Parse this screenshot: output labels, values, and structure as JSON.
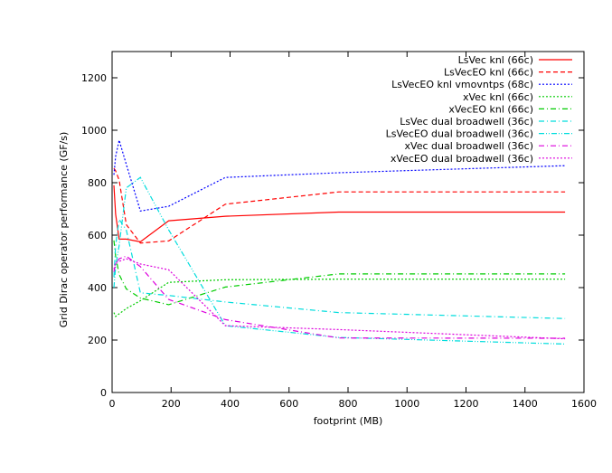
{
  "chart_data": {
    "type": "line",
    "title": "",
    "xlabel": "footprint (MB)",
    "ylabel": "Grid Dirac operator performance (GF/s)",
    "xlim": [
      0,
      1600
    ],
    "ylim": [
      0,
      1300
    ],
    "xticks": [
      0,
      200,
      400,
      600,
      800,
      1000,
      1200,
      1400,
      1600
    ],
    "yticks": [
      0,
      200,
      400,
      600,
      800,
      1000,
      1200
    ],
    "grid": false,
    "legend_position": "top-right",
    "series": [
      {
        "name": "LsVec knl (66c)",
        "color": "#ff0000",
        "dash": "solid",
        "x": [
          6,
          12,
          24,
          48,
          96,
          192,
          384,
          768,
          1536
        ],
        "y": [
          790,
          680,
          585,
          585,
          575,
          655,
          672,
          688,
          688
        ]
      },
      {
        "name": "LsVecEO knl (66c)",
        "color": "#ff0000",
        "dash": "dashed",
        "x": [
          6,
          12,
          24,
          48,
          96,
          192,
          384,
          768,
          1536
        ],
        "y": [
          855,
          845,
          810,
          640,
          570,
          578,
          718,
          765,
          765
        ]
      },
      {
        "name": "LsVecEO knl vmovntps (68c)",
        "color": "#0000ff",
        "dash": "dotted",
        "x": [
          6,
          12,
          24,
          48,
          96,
          192,
          384,
          768,
          1536
        ],
        "y": [
          830,
          900,
          962,
          870,
          692,
          710,
          820,
          838,
          865
        ]
      },
      {
        "name": "xVec knl (66c)",
        "color": "#00cc00",
        "dash": "dotted",
        "x": [
          6,
          12,
          24,
          48,
          96,
          192,
          384,
          768,
          1536
        ],
        "y": [
          305,
          290,
          300,
          320,
          350,
          420,
          430,
          432,
          432
        ]
      },
      {
        "name": "xVecEO knl (66c)",
        "color": "#00cc00",
        "dash": "dashdot",
        "x": [
          6,
          12,
          24,
          48,
          96,
          192,
          384,
          768,
          1536
        ],
        "y": [
          580,
          520,
          450,
          395,
          360,
          335,
          402,
          452,
          452
        ]
      },
      {
        "name": "LsVec dual broadwell (36c)",
        "color": "#00dddd",
        "dash": "dashdot",
        "x": [
          6,
          12,
          24,
          48,
          96,
          192,
          384,
          768,
          1536
        ],
        "y": [
          440,
          560,
          660,
          620,
          380,
          370,
          345,
          305,
          282
        ]
      },
      {
        "name": "LsVecEO dual broadwell (36c)",
        "color": "#00dddd",
        "dash": "dashdotdot",
        "x": [
          6,
          12,
          24,
          48,
          96,
          192,
          384,
          768,
          1536
        ],
        "y": [
          400,
          480,
          560,
          780,
          820,
          620,
          255,
          210,
          185
        ]
      },
      {
        "name": "xVec dual broadwell (36c)",
        "color": "#dd00dd",
        "dash": "dashdot",
        "x": [
          6,
          12,
          24,
          48,
          96,
          192,
          384,
          768,
          1536
        ],
        "y": [
          460,
          490,
          510,
          520,
          480,
          355,
          278,
          208,
          207
        ]
      },
      {
        "name": "xVecEO dual broadwell (36c)",
        "color": "#dd00dd",
        "dash": "dotted",
        "x": [
          6,
          12,
          24,
          48,
          96,
          192,
          384,
          768,
          1536
        ],
        "y": [
          470,
          495,
          500,
          510,
          490,
          468,
          255,
          240,
          205
        ]
      }
    ]
  }
}
